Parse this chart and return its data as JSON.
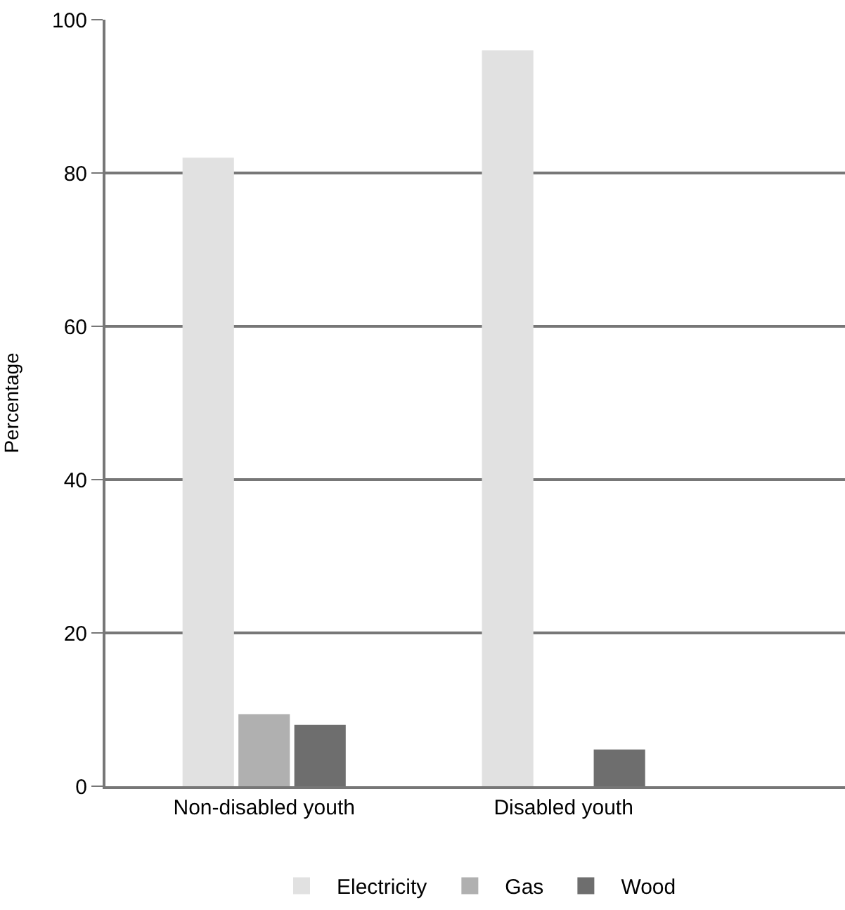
{
  "chart_data": {
    "type": "bar",
    "ylabel": "Percentage",
    "categories": [
      "Non-disabled youth",
      "Disabled youth"
    ],
    "series": [
      {
        "name": "Electricity",
        "color": "#e1e1e1",
        "values": [
          82,
          96
        ]
      },
      {
        "name": "Gas",
        "color": "#b0b0b0",
        "values": [
          9.4,
          null
        ]
      },
      {
        "name": "Wood",
        "color": "#6e6e6e",
        "values": [
          8.0,
          4.8
        ]
      }
    ],
    "ylim": [
      0,
      100
    ],
    "yticks": [
      0,
      20,
      40,
      60,
      80,
      100
    ],
    "grid": "y",
    "legend": "bottom"
  }
}
